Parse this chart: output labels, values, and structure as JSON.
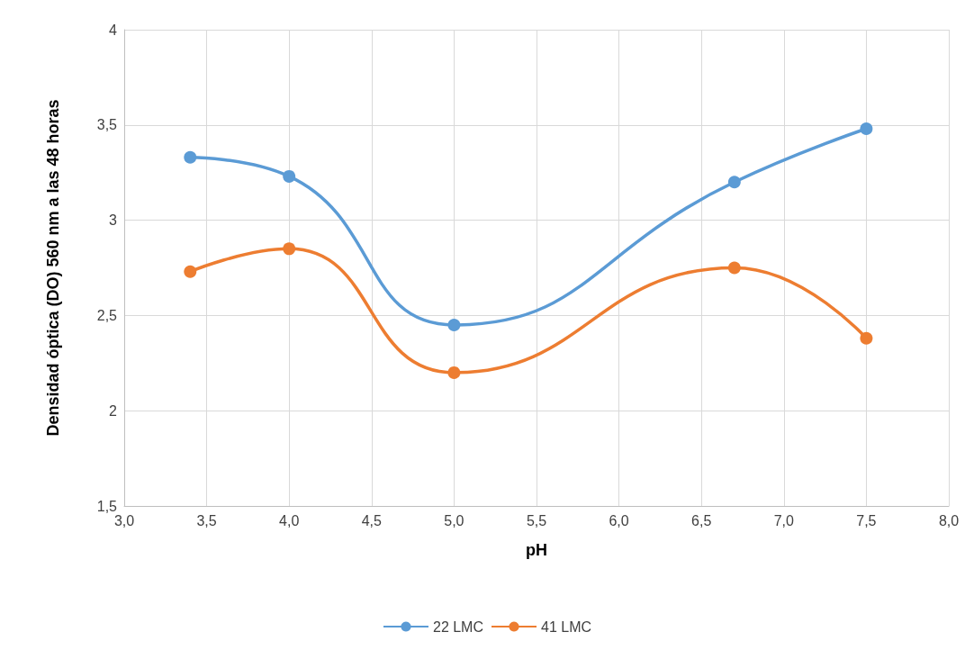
{
  "chart_data": {
    "type": "line",
    "xlabel": "pH",
    "ylabel": "Densidad óptica (DO) 560 nm a las 48 horas",
    "x": [
      3.4,
      4.0,
      5.0,
      6.7,
      7.5
    ],
    "series": [
      {
        "name": "22 LMC",
        "color": "#5b9bd5",
        "values": [
          3.33,
          3.23,
          2.45,
          3.2,
          3.48
        ]
      },
      {
        "name": "41 LMC",
        "color": "#ed7d31",
        "values": [
          2.73,
          2.85,
          2.2,
          2.75,
          2.38
        ]
      }
    ],
    "xlim": [
      3.0,
      8.0
    ],
    "xticks": [
      {
        "value": 3.0,
        "label": "3,0"
      },
      {
        "value": 3.5,
        "label": "3,5"
      },
      {
        "value": 4.0,
        "label": "4,0"
      },
      {
        "value": 4.5,
        "label": "4,5"
      },
      {
        "value": 5.0,
        "label": "5,0"
      },
      {
        "value": 5.5,
        "label": "5,5"
      },
      {
        "value": 6.0,
        "label": "6,0"
      },
      {
        "value": 6.5,
        "label": "6,5"
      },
      {
        "value": 7.0,
        "label": "7,0"
      },
      {
        "value": 7.5,
        "label": "7,5"
      },
      {
        "value": 8.0,
        "label": "8,0"
      }
    ],
    "ylim": [
      1.5,
      4
    ],
    "yticks": [
      {
        "value": 1.5,
        "label": "1,5"
      },
      2,
      {
        "value": 2.5,
        "label": "2,5"
      },
      3,
      {
        "value": 3.5,
        "label": "3,5"
      },
      4
    ],
    "grid": true,
    "legend": "bottom",
    "marker": "circle",
    "line_style": "solid"
  }
}
